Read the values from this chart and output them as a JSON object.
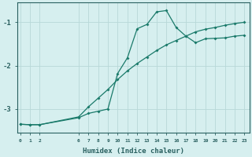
{
  "xlabel": "Humidex (Indice chaleur)",
  "ylabel": "",
  "background_color": "#d6efef",
  "grid_color": "#b8d8d8",
  "line_color": "#1a7a6a",
  "spine_color": "#2a6060",
  "xtick_labels": [
    "0",
    "1",
    "2",
    "6",
    "7",
    "8",
    "9",
    "10",
    "11",
    "12",
    "13",
    "14",
    "15",
    "16",
    "17",
    "18",
    "19",
    "20",
    "21",
    "22",
    "23"
  ],
  "xtick_positions": [
    0,
    1,
    2,
    6,
    7,
    8,
    9,
    10,
    11,
    12,
    13,
    14,
    15,
    16,
    17,
    18,
    19,
    20,
    21,
    22,
    23
  ],
  "yticks": [
    -1,
    -2,
    -3
  ],
  "xlim": [
    -0.3,
    23.5
  ],
  "ylim": [
    -3.55,
    -0.55
  ],
  "curve1_x": [
    0,
    1,
    2,
    6,
    7,
    8,
    9,
    10,
    11,
    12,
    13,
    14,
    15,
    16,
    17,
    18,
    19,
    20,
    21,
    22,
    23
  ],
  "curve1_y": [
    -3.35,
    -3.36,
    -3.36,
    -3.2,
    -3.1,
    -3.05,
    -3.0,
    -2.18,
    -1.82,
    -1.15,
    -1.05,
    -0.76,
    -0.73,
    -1.12,
    -1.32,
    -1.47,
    -1.38,
    -1.37,
    -1.36,
    -1.32,
    -1.3
  ],
  "curve2_x": [
    0,
    1,
    2,
    6,
    7,
    8,
    9,
    10,
    11,
    12,
    13,
    14,
    15,
    16,
    17,
    18,
    19,
    20,
    21,
    22,
    23
  ],
  "curve2_y": [
    -3.35,
    -3.36,
    -3.36,
    -3.18,
    -2.95,
    -2.75,
    -2.55,
    -2.32,
    -2.12,
    -1.95,
    -1.8,
    -1.65,
    -1.52,
    -1.42,
    -1.32,
    -1.22,
    -1.16,
    -1.12,
    -1.07,
    -1.03,
    -1.0
  ]
}
